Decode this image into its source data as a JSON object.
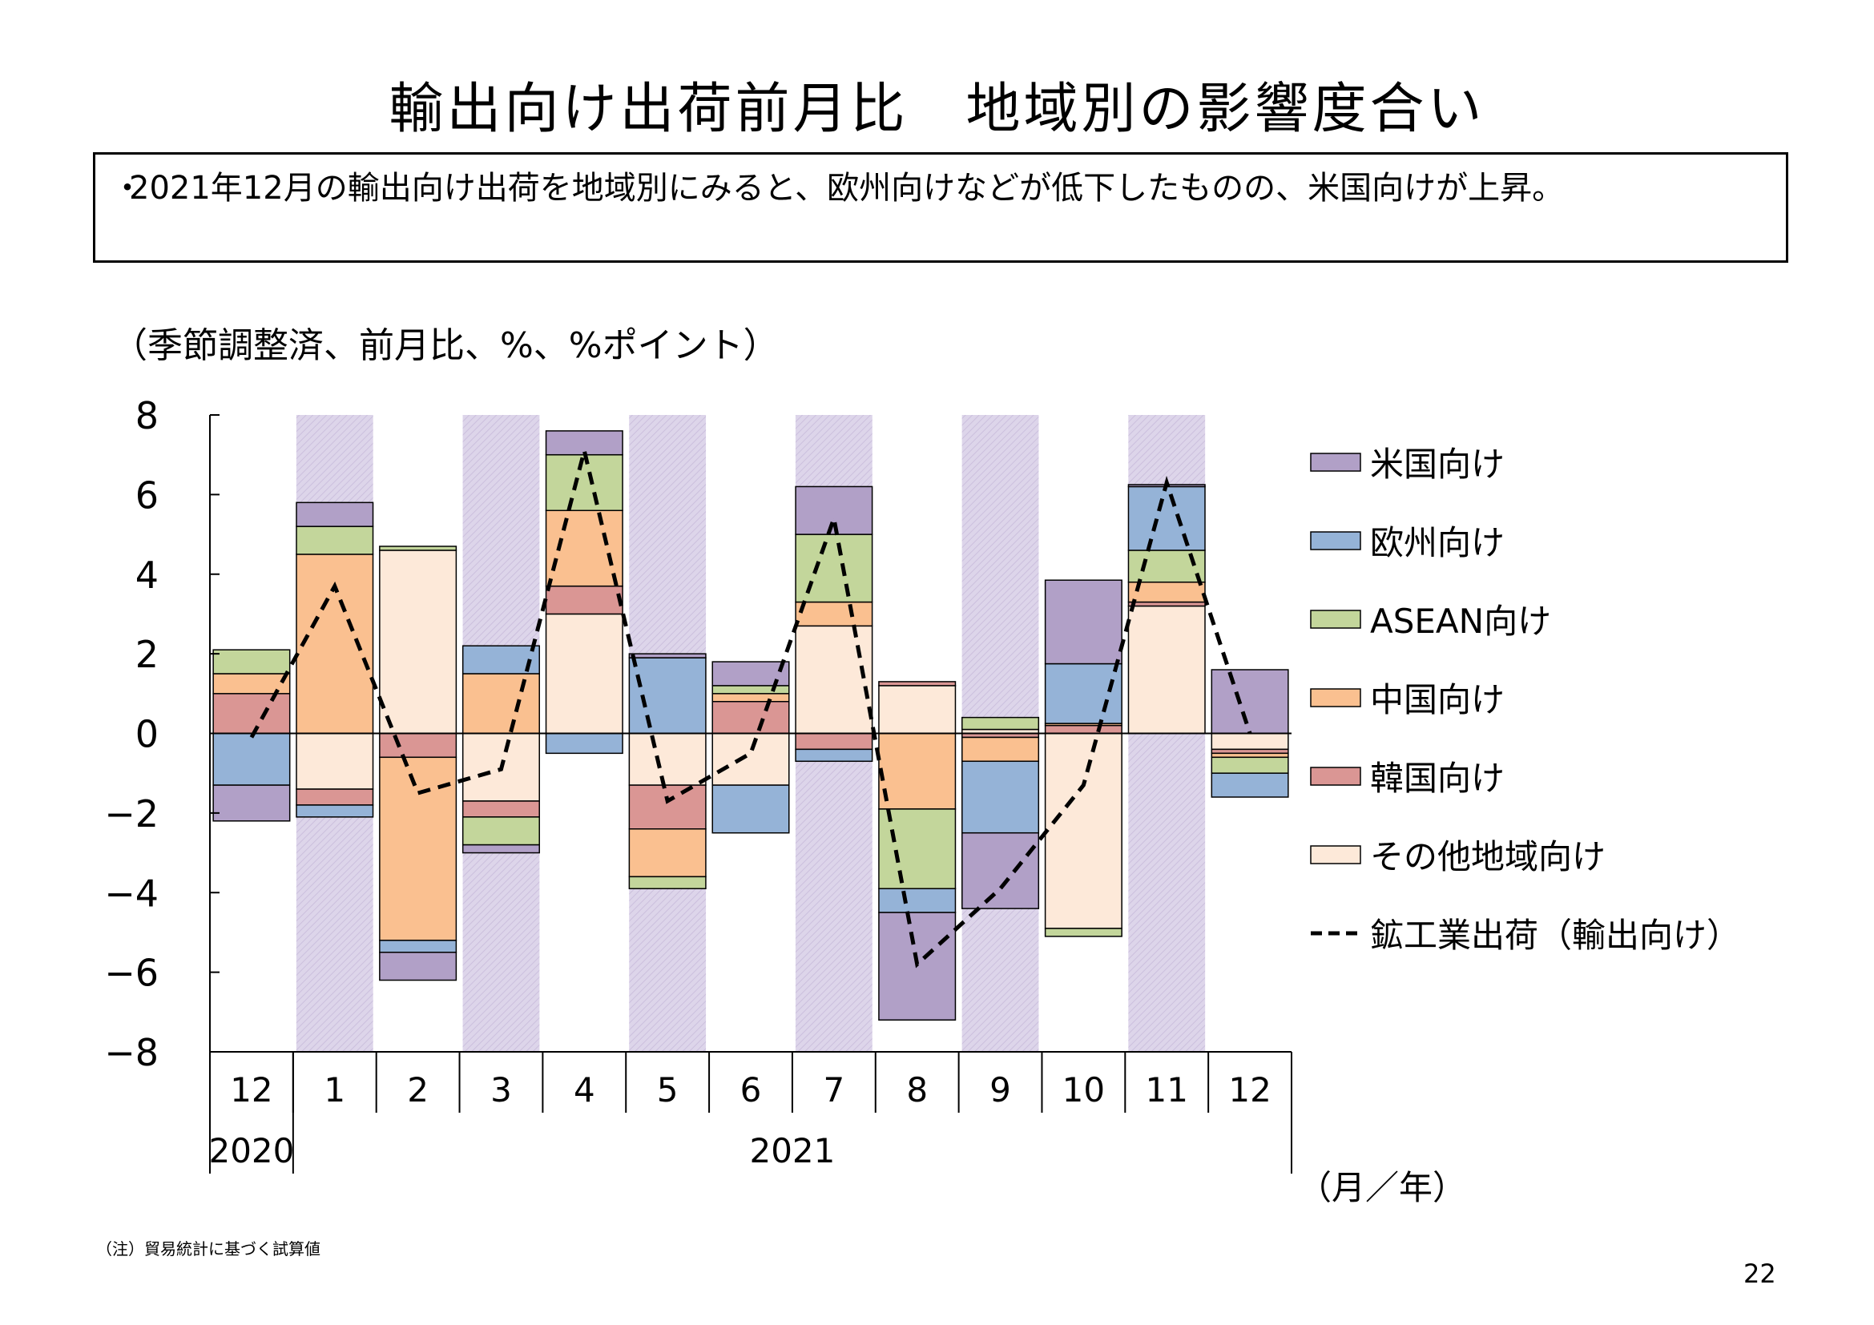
{
  "title": "輸出向け出荷前月比　地域別の影響度合い",
  "summary": {
    "bullet": "・",
    "text": "2021年12月の輸出向け出荷を地域別にみると、欧州向けなどが低下したものの、米国向けが上昇。"
  },
  "unit_label": "（季節調整済、前月比、%、%ポイント）",
  "footnote": "（注）貿易統計に基づく試算値",
  "page_number": "22",
  "chart_data": {
    "type": "bar",
    "stacked": true,
    "categories": [
      "12",
      "1",
      "2",
      "3",
      "4",
      "5",
      "6",
      "7",
      "8",
      "9",
      "10",
      "11",
      "12"
    ],
    "year_labels": [
      {
        "label": "2020",
        "from": 0,
        "to": 0
      },
      {
        "label": "2021",
        "from": 1,
        "to": 12
      }
    ],
    "x_unit_label": "（月／年）",
    "ylim": [
      -8,
      8
    ],
    "yticks": [
      8,
      6,
      4,
      2,
      0,
      -2,
      -4,
      -6,
      -8
    ],
    "ytick_labels": [
      "8",
      "6",
      "4",
      "2",
      "0",
      "−2",
      "−4",
      "−6",
      "−8"
    ],
    "shaded_months": [
      1,
      3,
      5,
      7,
      9,
      11
    ],
    "shade_color": "#d8d0e8",
    "series": [
      {
        "name": "その他地域向け",
        "color": "#fde9d9",
        "values": [
          0,
          -1.4,
          4.6,
          -1.7,
          3.0,
          -1.3,
          -1.3,
          2.7,
          1.2,
          0.1,
          -4.9,
          3.2,
          -0.4
        ]
      },
      {
        "name": "韓国向け",
        "color": "#da9694",
        "values": [
          1.0,
          -0.4,
          -0.6,
          -0.4,
          0.7,
          -1.1,
          0.8,
          -0.4,
          0.1,
          -0.1,
          0.2,
          0.1,
          -0.1
        ]
      },
      {
        "name": "中国向け",
        "color": "#fac090",
        "values": [
          0.5,
          4.5,
          -4.6,
          1.5,
          1.9,
          -1.2,
          0.2,
          0.6,
          -1.9,
          -0.6,
          0.05,
          0.5,
          -0.1
        ]
      },
      {
        "name": "ASEAN向け",
        "color": "#c3d69b",
        "values": [
          0.6,
          0.7,
          0.1,
          -0.7,
          1.4,
          -0.3,
          0.2,
          1.7,
          -2.0,
          0.3,
          -0.2,
          0.8,
          -0.4
        ]
      },
      {
        "name": "欧州向け",
        "color": "#95b3d7",
        "values": [
          -1.3,
          -0.3,
          -0.3,
          0.7,
          -0.5,
          1.9,
          -1.2,
          -0.3,
          -0.6,
          -1.8,
          1.5,
          1.6,
          -0.6
        ]
      },
      {
        "name": "米国向け",
        "color": "#b1a0c7",
        "values": [
          -0.9,
          0.6,
          -0.7,
          -0.2,
          0.6,
          0.1,
          0.6,
          1.2,
          -2.7,
          -1.9,
          2.1,
          0.05,
          1.6
        ]
      }
    ],
    "legend_order": [
      "米国向け",
      "欧州向け",
      "ASEAN向け",
      "中国向け",
      "韓国向け",
      "その他地域向け",
      "鉱工業出荷（輸出向け）"
    ],
    "line_series": {
      "name": "鉱工業出荷（輸出向け）",
      "style": "dashed",
      "color": "#000000",
      "values": [
        -0.1,
        3.7,
        -1.5,
        -0.9,
        7.1,
        -1.7,
        -0.5,
        5.4,
        -5.8,
        -3.9,
        -1.3,
        6.3,
        0.0
      ]
    },
    "grid": false,
    "legend_position": "right"
  }
}
